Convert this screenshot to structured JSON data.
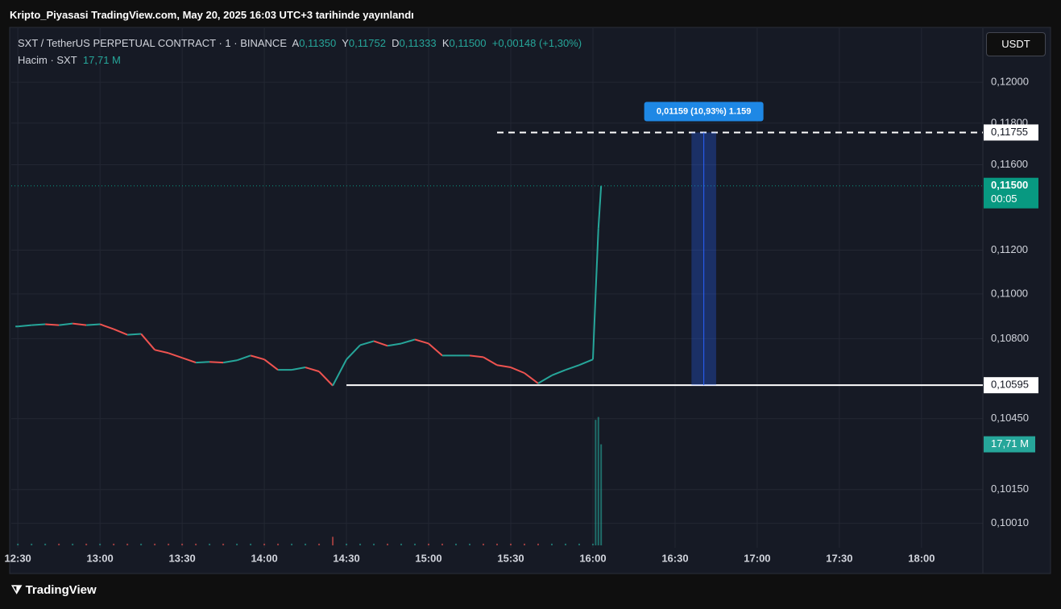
{
  "header": {
    "title": "Kripto_Piyasasi TradingView.com, May 20, 2025 16:03 UTC+3 tarihinde yayınlandı"
  },
  "legend": {
    "symbol": "SXT / TetherUS PERPETUAL CONTRACT · 1 · BINANCE",
    "open_label": "A",
    "open": "0,11350",
    "high_label": "Y",
    "high": "0,11752",
    "low_label": "D",
    "low": "0,11333",
    "close_label": "K",
    "close": "0,11500",
    "change": "+0,00148 (+1,30%)",
    "volume_label": "Hacim · SXT",
    "volume": "17,71 M"
  },
  "currency_button": "USDT",
  "footer": "TradingView",
  "chart_data": {
    "type": "price",
    "log_scale": true,
    "grid": true,
    "up_color": "#26a69a",
    "down_color": "#ef5350",
    "x": [
      750,
      755,
      760,
      765,
      770,
      775,
      780,
      785,
      790,
      795,
      800,
      805,
      810,
      815,
      820,
      825,
      830,
      835,
      840,
      845,
      850,
      855,
      860,
      865,
      870,
      875,
      880,
      885,
      890,
      895,
      900,
      905,
      910,
      915,
      920,
      925,
      930,
      935,
      940,
      945,
      950,
      955,
      960,
      961,
      962,
      963
    ],
    "series": [
      {
        "name": "SXT",
        "values": [
          0.10854,
          0.1086,
          0.10864,
          0.1086,
          0.10867,
          0.1086,
          0.10864,
          0.10842,
          0.10817,
          0.10821,
          0.1075,
          0.10736,
          0.10715,
          0.10694,
          0.10697,
          0.10694,
          0.10704,
          0.10725,
          0.10708,
          0.10662,
          0.10662,
          0.10673,
          0.10655,
          0.10593,
          0.10708,
          0.10771,
          0.10789,
          0.10768,
          0.10778,
          0.10796,
          0.10778,
          0.10725,
          0.10725,
          0.10725,
          0.10718,
          0.10683,
          0.10673,
          0.10648,
          0.10603,
          0.10638,
          0.10662,
          0.10683,
          0.10708,
          0.11003,
          0.113,
          0.115
        ]
      },
      {
        "name": "Hacim",
        "color": "#26a69a",
        "values": [
          0.3,
          0.3,
          0.3,
          0.3,
          0.3,
          0.3,
          0.3,
          0.3,
          0.3,
          0.3,
          0.3,
          0.3,
          0.3,
          0.3,
          0.3,
          0.3,
          0.3,
          0.3,
          0.3,
          0.3,
          0.3,
          0.3,
          0.3,
          1.5,
          0.3,
          0.3,
          0.3,
          0.3,
          0.3,
          0.3,
          0.3,
          0.3,
          0.3,
          0.3,
          0.3,
          0.3,
          0.3,
          0.3,
          0.3,
          0.3,
          0.3,
          0.3,
          0.3,
          22,
          22.5,
          17.71
        ],
        "value_labels": {
          "45": "17,71 M"
        },
        "ylim": [
          0,
          24
        ]
      }
    ],
    "xlim": [
      747.6,
      1102.4
    ],
    "ylim": [
      0.0991,
      0.1227
    ],
    "xticks": [
      {
        "value": 750,
        "label": "12:30"
      },
      {
        "value": 780,
        "label": "13:00"
      },
      {
        "value": 810,
        "label": "13:30"
      },
      {
        "value": 840,
        "label": "14:00"
      },
      {
        "value": 870,
        "label": "14:30"
      },
      {
        "value": 900,
        "label": "15:00"
      },
      {
        "value": 930,
        "label": "15:30"
      },
      {
        "value": 960,
        "label": "16:00"
      },
      {
        "value": 990,
        "label": "16:30"
      },
      {
        "value": 1020,
        "label": "17:00"
      },
      {
        "value": 1050,
        "label": "17:30"
      },
      {
        "value": 1080,
        "label": "18:00"
      }
    ],
    "yticks": [
      {
        "value": 0.12,
        "label": "0,12000"
      },
      {
        "value": 0.118,
        "label": "0,11800"
      },
      {
        "value": 0.116,
        "label": "0,11600"
      },
      {
        "value": 0.112,
        "label": "0,11200"
      },
      {
        "value": 0.11,
        "label": "0,11000"
      },
      {
        "value": 0.108,
        "label": "0,10800"
      },
      {
        "value": 0.1045,
        "label": "0,10450"
      },
      {
        "value": 0.1015,
        "label": "0,10150"
      },
      {
        "value": 0.1001,
        "label": "0,10010"
      }
    ],
    "levels": [
      {
        "value": 0.11755,
        "label": "0,11755",
        "style": "dashed",
        "start": 925
      },
      {
        "value": 0.10595,
        "label": "0,10595",
        "style": "solid",
        "start": 870
      }
    ],
    "last_price": {
      "value": 0.115,
      "label": "0,11500",
      "countdown": "00:05",
      "color": "#089981"
    },
    "measure": {
      "from": 0.10595,
      "to": 0.11755,
      "x_start": 996,
      "x_end": 1005,
      "label": "0,01159 (10,93%) 1.159",
      "color": "#2962ff"
    }
  }
}
